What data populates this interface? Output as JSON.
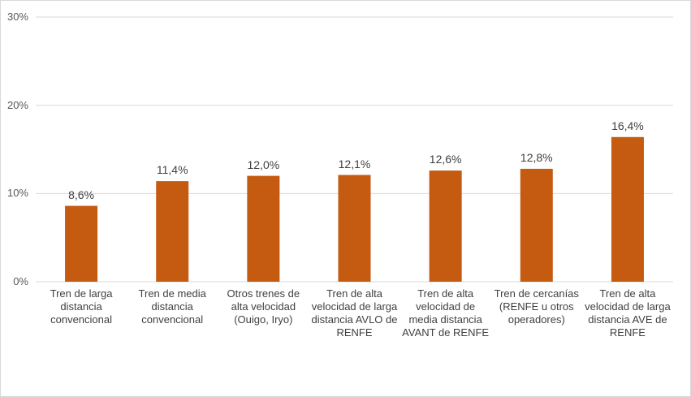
{
  "chart_data": {
    "type": "bar",
    "categories": [
      "Tren de larga distancia convencional",
      "Tren de media distancia convencional",
      "Otros trenes de alta velocidad (Ouigo, Iryo)",
      "Tren de alta velocidad de larga distancia AVLO de RENFE",
      "Tren de alta velocidad de media distancia AVANT de RENFE",
      "Tren de cercanías (RENFE u otros operadores)",
      "Tren de alta velocidad de larga distancia AVE de RENFE"
    ],
    "values": [
      8.6,
      11.4,
      12.0,
      12.1,
      12.6,
      12.8,
      16.4
    ],
    "data_labels": [
      "8,6%",
      "11,4%",
      "12,0%",
      "12,1%",
      "12,6%",
      "12,8%",
      "16,4%"
    ],
    "yticks": [
      "0%",
      "10%",
      "20%",
      "30%"
    ],
    "ylim": [
      0,
      30
    ],
    "grid": true,
    "bar_color": "#C55A11",
    "grid_color": "#D9D9D9"
  }
}
